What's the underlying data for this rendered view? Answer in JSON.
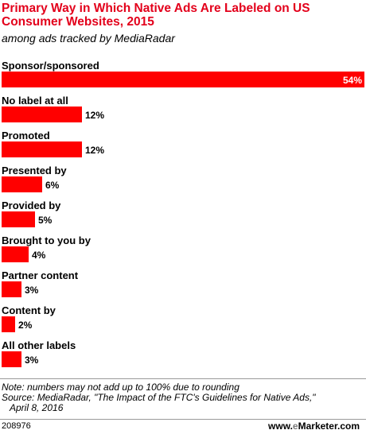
{
  "chart_data": {
    "type": "bar",
    "orientation": "horizontal",
    "title": "Primary Way in Which Native Ads Are Labeled on US Consumer Websites, 2015",
    "subtitle": "among ads tracked by MediaRadar",
    "categories": [
      "Sponsor/sponsored",
      "No label at all",
      "Promoted",
      "Presented by",
      "Provided by",
      "Brought to you by",
      "Partner content",
      "Content by",
      "All other labels"
    ],
    "values": [
      54,
      12,
      12,
      6,
      5,
      4,
      3,
      2,
      3
    ],
    "value_labels": [
      "54%",
      "12%",
      "12%",
      "6%",
      "5%",
      "4%",
      "3%",
      "2%",
      "3%"
    ],
    "xlim": [
      0,
      54
    ],
    "grid": false,
    "bar_color": "#ff0000"
  },
  "footnotes": {
    "note": "Note: numbers may not add up to 100% due to rounding",
    "source_line1": "Source: MediaRadar, \"The Impact of the FTC's Guidelines for Native Ads,\"",
    "source_line2": "April 8, 2016"
  },
  "chart_id": "208976",
  "brand": {
    "prefix": "www.",
    "e": "e",
    "name": "Marketer",
    "suffix": ".com"
  },
  "colors": {
    "title": "#e3001b",
    "bar": "#ff0000",
    "rule": "#9a9a9a"
  }
}
